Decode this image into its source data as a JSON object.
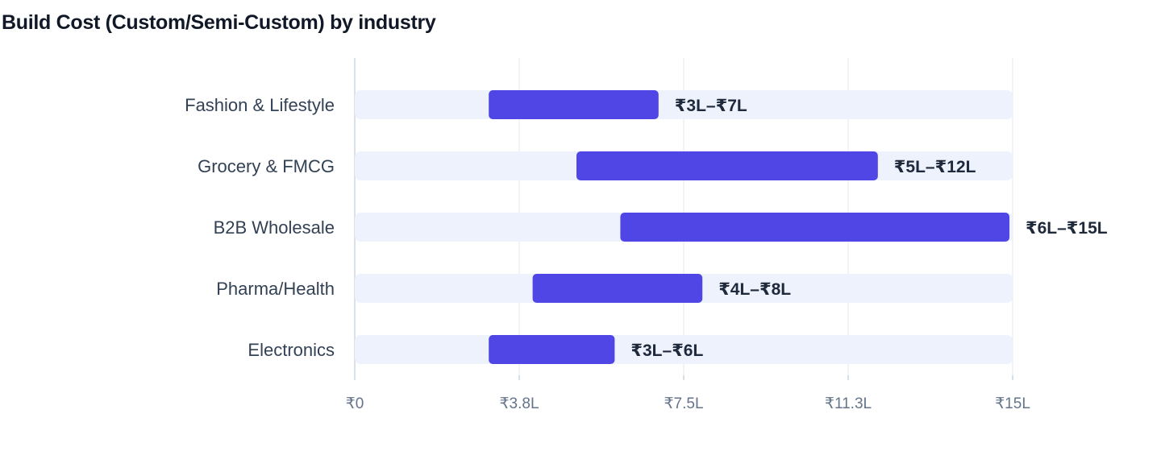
{
  "chart_data": {
    "type": "bar",
    "title": "Build Cost (Custom/Semi-Custom) by industry",
    "xlabel": "",
    "ylabel": "",
    "unit": "₹ Lakh",
    "xlim": [
      0,
      15
    ],
    "ticks": [
      0,
      3.75,
      7.5,
      11.25,
      15
    ],
    "tick_labels": [
      "₹0",
      "₹3.8L",
      "₹7.5L",
      "₹11.3L",
      "₹15L"
    ],
    "grid": true,
    "categories": [
      "Fashion & Lifestyle",
      "Grocery & FMCG",
      "B2B Wholesale",
      "Pharma/Health",
      "Electronics"
    ],
    "series": [
      {
        "low": 3,
        "high": 7,
        "label": "₹3L–₹7L"
      },
      {
        "low": 5,
        "high": 12,
        "label": "₹5L–₹12L"
      },
      {
        "low": 6,
        "high": 15,
        "label": "₹6L–₹15L"
      },
      {
        "low": 4,
        "high": 8,
        "label": "₹4L–₹8L"
      },
      {
        "low": 3,
        "high": 6,
        "label": "₹3L–₹6L"
      }
    ],
    "colors": {
      "range": "#4f46e5",
      "track": "#eef2fd",
      "grid": "#e2e8f0",
      "axis": "#cbd5e1"
    }
  }
}
